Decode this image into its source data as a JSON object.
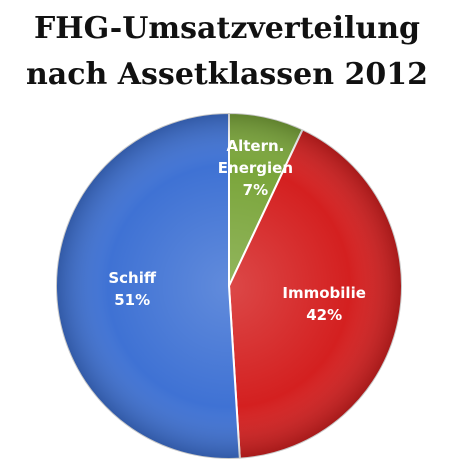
{
  "chart_data": {
    "type": "pie",
    "title_lines": [
      "FHG-Umsatzverteilung",
      "nach Assetklassen 2012"
    ],
    "slices": [
      {
        "label_lines": [
          "Altern.",
          "Energien"
        ],
        "value": 7,
        "value_label": "7%",
        "color": "#7aa53a"
      },
      {
        "label_lines": [
          "Immobilie"
        ],
        "value": 42,
        "value_label": "42%",
        "color": "#d42020"
      },
      {
        "label_lines": [
          "Schiff"
        ],
        "value": 51,
        "value_label": "51%",
        "color": "#3f72d4"
      }
    ]
  }
}
